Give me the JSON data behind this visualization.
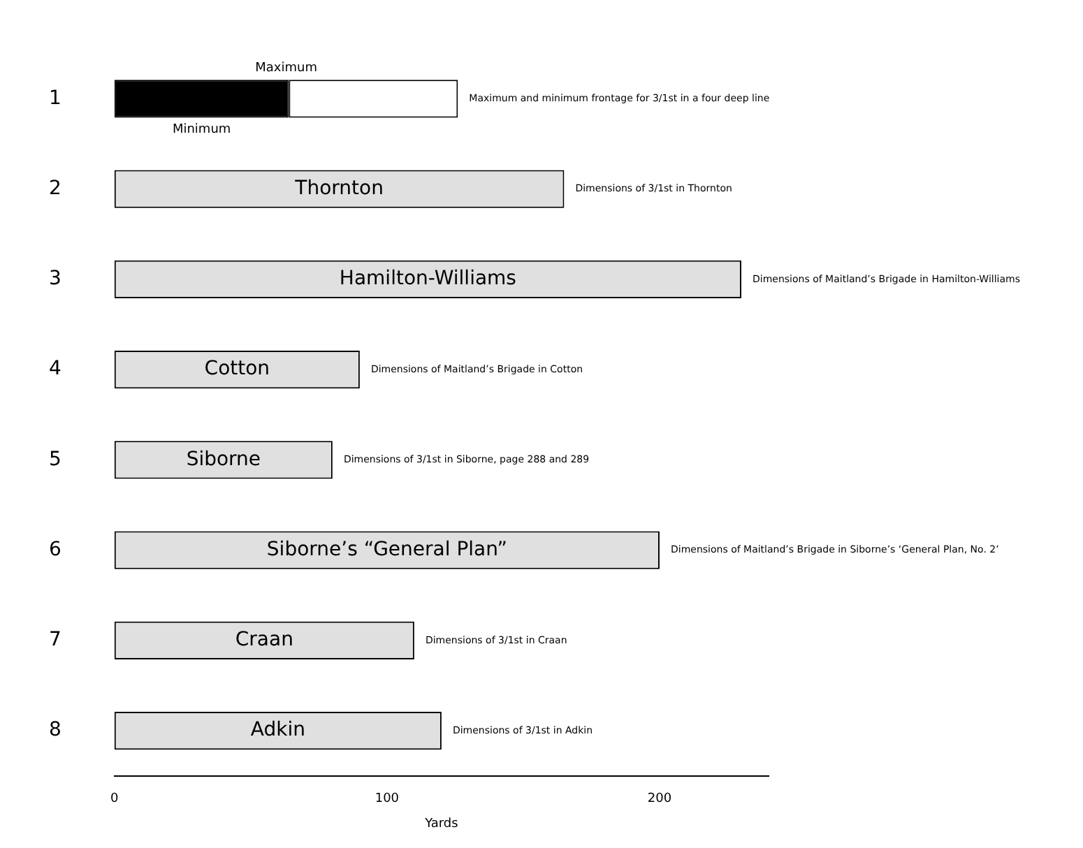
{
  "chart_data": {
    "type": "bar",
    "orientation": "horizontal",
    "stacked": true,
    "xlabel": "Yards",
    "categories": [
      "1",
      "2",
      "3",
      "4",
      "5",
      "6",
      "7",
      "8"
    ],
    "series": [
      {
        "color": "#000000",
        "values": [
          64,
          null,
          null,
          null,
          null,
          null,
          null,
          null
        ]
      },
      {
        "colors": [
          "#ffffff",
          "#e0e0e0",
          "#e0e0e0",
          "#e0e0e0",
          "#e0e0e0",
          "#e0e0e0",
          "#e0e0e0",
          "#e0e0e0"
        ],
        "values": [
          62,
          165,
          230,
          90,
          80,
          200,
          110,
          120
        ]
      }
    ],
    "xlim": [
      0,
      240
    ],
    "xticks": [
      0,
      100,
      200
    ],
    "grid": false,
    "annotations": [
      "Maximum",
      "Minimum",
      "Thornton",
      "Hamilton-Williams",
      "Cotton",
      "Siborne",
      "Siborne’s “General Plan”",
      "Craan",
      "Adkin",
      {
        "text": "Maximum and minimum frontage for 3/1st in a four deep line",
        "x": 126,
        "y": "1"
      },
      {
        "text": "Dimensions of 3/1st in Thornton",
        "x": 165,
        "y": "2"
      },
      {
        "text": "Dimensions of Maitland’s Brigade in Hamilton-Williams",
        "x": 230,
        "y": "3"
      },
      {
        "text": "Dimensions of Maitland’s Brigade in Cotton",
        "x": 90,
        "y": "4"
      },
      {
        "text": "Dimensions of 3/1st in Siborne, page 288 and 289",
        "x": 80,
        "y": "5"
      },
      {
        "text": "Dimensions of Maitland’s Brigade in Siborne’s ‘General Plan, No. 2’",
        "x": 200,
        "y": "6"
      },
      {
        "text": "Dimensions of 3/1st in Craan",
        "x": 110,
        "y": "7"
      },
      {
        "text": "Dimensions of 3/1st in Adkin",
        "x": 120,
        "y": "8"
      }
    ]
  }
}
